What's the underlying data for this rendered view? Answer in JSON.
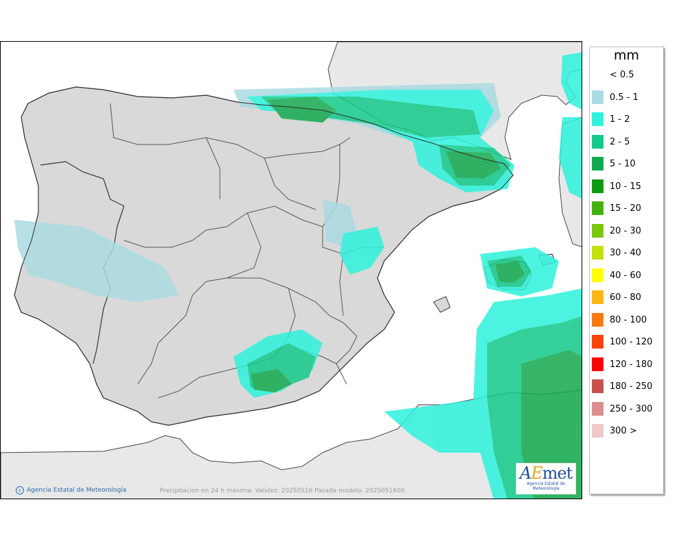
{
  "map": {
    "title": "Precipitación en 24 h máxima. Validez: 20250516 Pasada modelo: 2025051600",
    "credit": "Agencia Estatal de Meteorología",
    "logo": {
      "wordmark": "AEmet",
      "subtitle": "Agencia Estatal de Meteorología"
    },
    "colors": {
      "sea": "#ffffff",
      "land": "#d9d9d9",
      "foreign_land": "#e8e8e8",
      "border": "#333333"
    }
  },
  "legend": {
    "unit": "mm",
    "classes": [
      {
        "label": "< 0.5",
        "color": ""
      },
      {
        "label": "0.5 - 1",
        "color": "#aadbe1"
      },
      {
        "label": "1 - 2",
        "color": "#2ef2dc"
      },
      {
        "label": "2 - 5",
        "color": "#14c98a"
      },
      {
        "label": "5 - 10",
        "color": "#13a94e"
      },
      {
        "label": "10 - 15",
        "color": "#0d9a12"
      },
      {
        "label": "15 - 20",
        "color": "#45b10f"
      },
      {
        "label": "20 - 30",
        "color": "#7bc70b"
      },
      {
        "label": "30 - 40",
        "color": "#c2e00a"
      },
      {
        "label": "40 - 60",
        "color": "#ffff00"
      },
      {
        "label": "60 - 80",
        "color": "#fcb714"
      },
      {
        "label": "80 - 100",
        "color": "#fb7a11"
      },
      {
        "label": "100 - 120",
        "color": "#fc430c"
      },
      {
        "label": "120 - 180",
        "color": "#ff0000"
      },
      {
        "label": "180 - 250",
        "color": "#c8504f"
      },
      {
        "label": "250 - 300",
        "color": "#dc8d8e"
      },
      {
        "label": "300 >",
        "color": "#efc9c9"
      }
    ]
  }
}
